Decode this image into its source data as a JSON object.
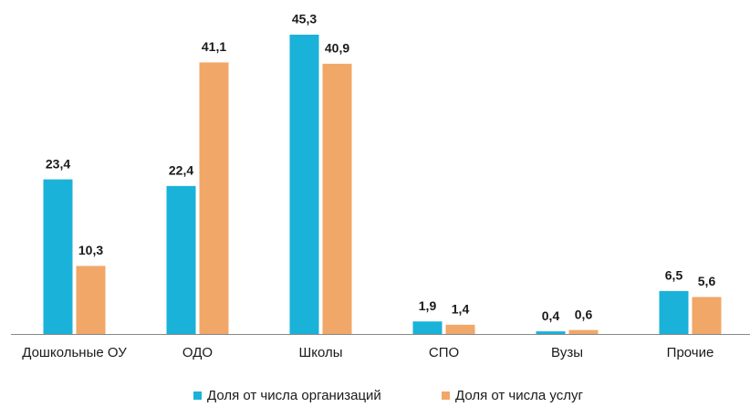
{
  "chart_data": {
    "type": "bar",
    "categories": [
      "Дошкольные ОУ",
      "ОДО",
      "Школы",
      "СПО",
      "Вузы",
      "Прочие"
    ],
    "series": [
      {
        "name": "Доля от числа организаций",
        "color": "#1ab2d8",
        "values": [
          23.4,
          22.4,
          45.3,
          1.9,
          0.4,
          6.5
        ],
        "value_labels": [
          "23,4",
          "22,4",
          "45,3",
          "1,9",
          "0,4",
          "6,5"
        ]
      },
      {
        "name": "Доля от числа услуг",
        "color": "#f1a767",
        "values": [
          10.3,
          41.1,
          40.9,
          1.4,
          0.6,
          5.6
        ],
        "value_labels": [
          "10,3",
          "41,1",
          "40,9",
          "1,4",
          "0,6",
          "5,6"
        ]
      }
    ],
    "legend": "bottom"
  }
}
